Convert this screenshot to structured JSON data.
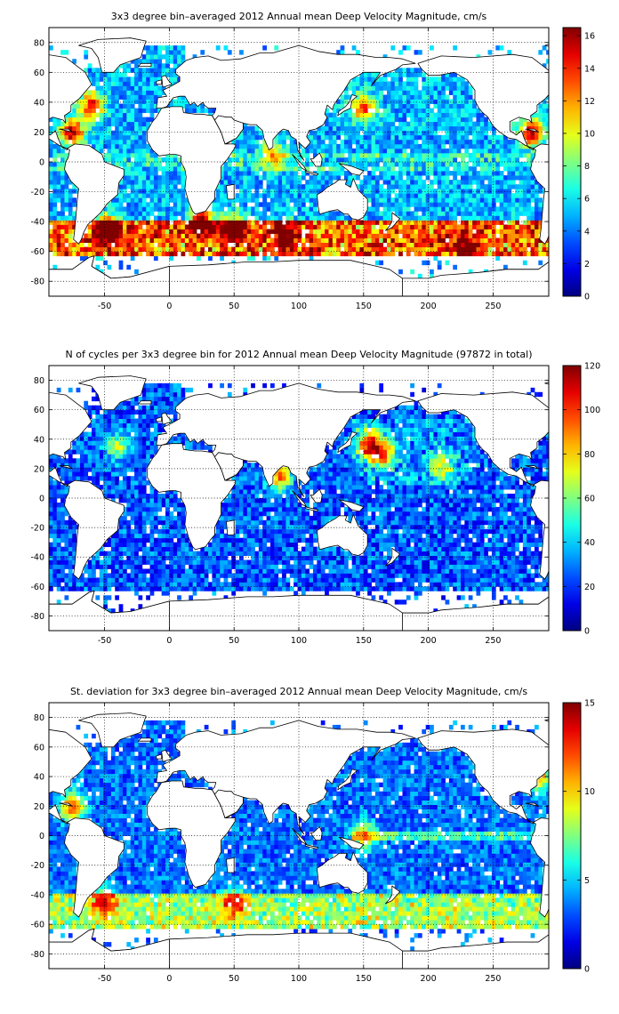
{
  "chart_data": [
    {
      "type": "heatmap",
      "title": "3x3 degree bin–averaged 2012 Annual mean Deep Velocity Magnitude, cm/s",
      "xlabel": "",
      "ylabel": "",
      "xlim": [
        -93,
        293
      ],
      "ylim": [
        -90,
        90
      ],
      "xticks": [
        -50,
        0,
        50,
        100,
        150,
        200,
        250
      ],
      "yticks": [
        -80,
        -60,
        -40,
        -20,
        0,
        20,
        40,
        60,
        80
      ],
      "bin_size_deg": 3,
      "grid": true,
      "colorbar": {
        "min": 0,
        "max": 16.5,
        "ticks": [
          0,
          2,
          4,
          6,
          8,
          10,
          12,
          14,
          16
        ],
        "colormap": "jet"
      },
      "hotspots": [
        {
          "lon": -60,
          "lat": 38,
          "value": 13
        },
        {
          "lon": -75,
          "lat": 20,
          "value": 15
        },
        {
          "lon": -48,
          "lat": -45,
          "value": 16
        },
        {
          "lon": 25,
          "lat": -40,
          "value": 16
        },
        {
          "lon": 50,
          "lat": -45,
          "value": 14
        },
        {
          "lon": 90,
          "lat": -50,
          "value": 12
        },
        {
          "lon": 150,
          "lat": 36,
          "value": 12
        },
        {
          "lon": 280,
          "lat": 20,
          "value": 15
        },
        {
          "lon": 230,
          "lat": -58,
          "value": 12
        },
        {
          "lon": 80,
          "lat": 5,
          "value": 10
        }
      ]
    },
    {
      "type": "heatmap",
      "title": "N of cycles per 3x3 degree bin for 2012 Annual mean Deep Velocity Magnitude (97872 in total)",
      "xlabel": "",
      "ylabel": "",
      "xlim": [
        -93,
        293
      ],
      "ylim": [
        -90,
        90
      ],
      "xticks": [
        -50,
        0,
        50,
        100,
        150,
        200,
        250
      ],
      "yticks": [
        -80,
        -60,
        -40,
        -20,
        0,
        20,
        40,
        60,
        80
      ],
      "bin_size_deg": 3,
      "total_cycles": 97872,
      "grid": true,
      "colorbar": {
        "min": 0,
        "max": 120,
        "ticks": [
          0,
          20,
          40,
          60,
          80,
          100,
          120
        ],
        "colormap": "jet"
      },
      "hotspots": [
        {
          "lon": 155,
          "lat": 36,
          "value": 110
        },
        {
          "lon": 165,
          "lat": 30,
          "value": 80
        },
        {
          "lon": 85,
          "lat": 15,
          "value": 90
        },
        {
          "lon": 210,
          "lat": 22,
          "value": 70
        },
        {
          "lon": -40,
          "lat": 35,
          "value": 60
        }
      ]
    },
    {
      "type": "heatmap",
      "title": "St. deviation for 3x3 degree bin–averaged 2012 Annual mean Deep Velocity Magnitude, cm/s",
      "xlabel": "",
      "ylabel": "",
      "xlim": [
        -93,
        293
      ],
      "ylim": [
        -90,
        90
      ],
      "xticks": [
        -50,
        0,
        50,
        100,
        150,
        200,
        250
      ],
      "yticks": [
        -80,
        -60,
        -40,
        -20,
        0,
        20,
        40,
        60,
        80
      ],
      "bin_size_deg": 3,
      "grid": true,
      "colorbar": {
        "min": 0,
        "max": 15,
        "ticks": [
          0,
          5,
          10,
          15
        ],
        "colormap": "jet"
      },
      "hotspots": [
        {
          "lon": -75,
          "lat": 20,
          "value": 12
        },
        {
          "lon": -50,
          "lat": -45,
          "value": 10
        },
        {
          "lon": 50,
          "lat": -45,
          "value": 10
        },
        {
          "lon": 150,
          "lat": 0,
          "value": 9
        },
        {
          "lon": 285,
          "lat": 40,
          "value": 11
        }
      ]
    }
  ]
}
